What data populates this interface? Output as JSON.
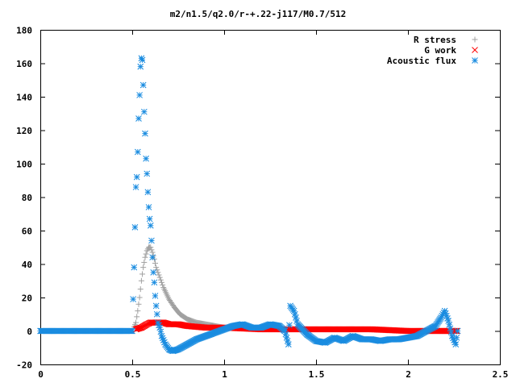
{
  "chart_data": {
    "type": "scatter",
    "title": "m2/n1.5/q2.0/r-+.22-j117/M0.7/512",
    "xlabel": "",
    "ylabel": "",
    "xlim": [
      0,
      2.5
    ],
    "ylim": [
      -20,
      180
    ],
    "xticks": [
      "0",
      "0.5",
      "1",
      "1.5",
      "2",
      "2.5"
    ],
    "yticks": [
      "-20",
      "0",
      "20",
      "40",
      "60",
      "80",
      "100",
      "120",
      "140",
      "160",
      "180"
    ],
    "legend_position": "top-right",
    "grid": false,
    "series": [
      {
        "name": "R stress",
        "marker": "plus",
        "color": "#a0a0a0",
        "points": [
          [
            0.0,
            0
          ],
          [
            0.1,
            0
          ],
          [
            0.2,
            0
          ],
          [
            0.3,
            0
          ],
          [
            0.4,
            0
          ],
          [
            0.5,
            0
          ],
          [
            0.52,
            5
          ],
          [
            0.53,
            12
          ],
          [
            0.54,
            20
          ],
          [
            0.55,
            30
          ],
          [
            0.56,
            38
          ],
          [
            0.57,
            44
          ],
          [
            0.58,
            48
          ],
          [
            0.59,
            50
          ],
          [
            0.6,
            50
          ],
          [
            0.61,
            47
          ],
          [
            0.62,
            43
          ],
          [
            0.63,
            38
          ],
          [
            0.65,
            32
          ],
          [
            0.67,
            26
          ],
          [
            0.7,
            19
          ],
          [
            0.73,
            14
          ],
          [
            0.76,
            10
          ],
          [
            0.8,
            7
          ],
          [
            0.85,
            5
          ],
          [
            0.9,
            4
          ],
          [
            0.95,
            3
          ],
          [
            1.0,
            2
          ]
        ]
      },
      {
        "name": "G work",
        "marker": "cross",
        "color": "#ff0000",
        "points": [
          [
            0.52,
            1
          ],
          [
            0.55,
            2
          ],
          [
            0.58,
            4
          ],
          [
            0.6,
            5
          ],
          [
            0.63,
            5
          ],
          [
            0.67,
            5
          ],
          [
            0.7,
            4
          ],
          [
            0.75,
            4
          ],
          [
            0.8,
            3
          ],
          [
            0.9,
            2
          ],
          [
            1.0,
            2
          ],
          [
            1.2,
            1
          ],
          [
            1.4,
            1
          ],
          [
            1.6,
            1
          ],
          [
            1.8,
            1
          ],
          [
            2.0,
            0
          ],
          [
            2.2,
            0
          ],
          [
            2.27,
            0
          ]
        ]
      },
      {
        "name": "Acoustic flux",
        "marker": "star",
        "color": "#1a8ce0",
        "points": [
          [
            0.0,
            0
          ],
          [
            0.1,
            0
          ],
          [
            0.2,
            0
          ],
          [
            0.3,
            0
          ],
          [
            0.4,
            0
          ],
          [
            0.5,
            0
          ],
          [
            0.51,
            38
          ],
          [
            0.52,
            86
          ],
          [
            0.525,
            92
          ],
          [
            0.53,
            107
          ],
          [
            0.535,
            127
          ],
          [
            0.54,
            141
          ],
          [
            0.545,
            158
          ],
          [
            0.55,
            163
          ],
          [
            0.555,
            162
          ],
          [
            0.56,
            147
          ],
          [
            0.565,
            131
          ],
          [
            0.57,
            118
          ],
          [
            0.575,
            103
          ],
          [
            0.58,
            94
          ],
          [
            0.585,
            83
          ],
          [
            0.59,
            74
          ],
          [
            0.595,
            67
          ],
          [
            0.6,
            63
          ],
          [
            0.605,
            54
          ],
          [
            0.61,
            44
          ],
          [
            0.615,
            35
          ],
          [
            0.62,
            29
          ],
          [
            0.625,
            21
          ],
          [
            0.63,
            15
          ],
          [
            0.635,
            10
          ],
          [
            0.64,
            5
          ],
          [
            0.65,
            2
          ],
          [
            0.66,
            -3
          ],
          [
            0.68,
            -8
          ],
          [
            0.7,
            -11
          ],
          [
            0.72,
            -12
          ],
          [
            0.75,
            -11
          ],
          [
            0.8,
            -8
          ],
          [
            0.85,
            -5
          ],
          [
            0.9,
            -3
          ],
          [
            0.95,
            -1
          ],
          [
            1.0,
            1
          ],
          [
            1.05,
            3
          ],
          [
            1.1,
            4
          ],
          [
            1.15,
            2
          ],
          [
            1.2,
            2
          ],
          [
            1.25,
            4
          ],
          [
            1.3,
            3
          ],
          [
            1.33,
            0
          ],
          [
            1.35,
            -8
          ],
          [
            1.36,
            15
          ],
          [
            1.38,
            12
          ],
          [
            1.4,
            4
          ],
          [
            1.45,
            -2
          ],
          [
            1.5,
            -6
          ],
          [
            1.55,
            -7
          ],
          [
            1.6,
            -4
          ],
          [
            1.65,
            -6
          ],
          [
            1.7,
            -3
          ],
          [
            1.75,
            -5
          ],
          [
            1.8,
            -5
          ],
          [
            1.85,
            -6
          ],
          [
            1.9,
            -5
          ],
          [
            1.95,
            -5
          ],
          [
            2.0,
            -4
          ],
          [
            2.05,
            -3
          ],
          [
            2.1,
            0
          ],
          [
            2.15,
            3
          ],
          [
            2.18,
            8
          ],
          [
            2.2,
            12
          ],
          [
            2.22,
            6
          ],
          [
            2.24,
            -3
          ],
          [
            2.26,
            -8
          ],
          [
            2.27,
            0
          ]
        ]
      }
    ]
  }
}
